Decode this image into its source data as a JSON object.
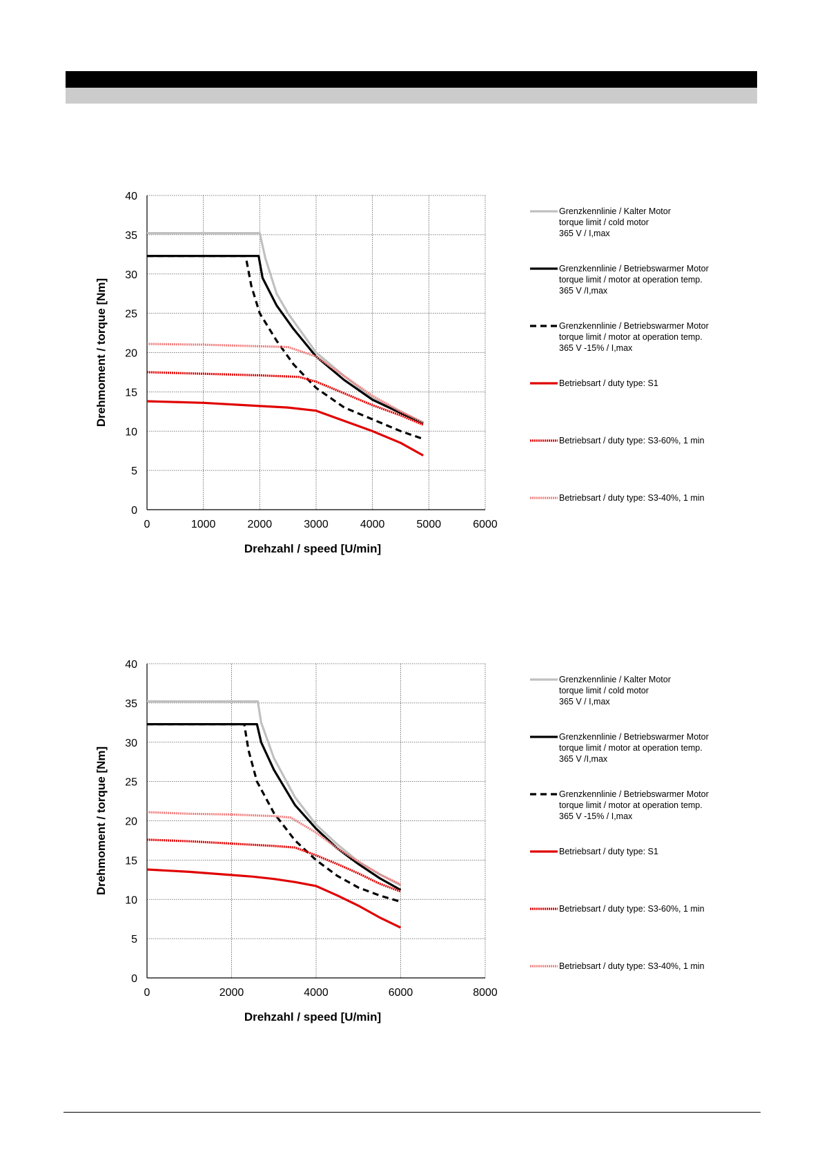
{
  "chart_data": [
    {
      "type": "line",
      "title": "",
      "xlabel": "Drehzahl / speed [U/min]",
      "ylabel": "Drehmoment / torque [Nm]",
      "xlim": [
        0,
        6000
      ],
      "ylim": [
        0,
        40
      ],
      "xticks": [
        0,
        1000,
        2000,
        3000,
        4000,
        5000,
        6000
      ],
      "yticks": [
        0,
        5,
        10,
        15,
        20,
        25,
        30,
        35,
        40
      ],
      "grid": "dotted",
      "legend_position": "right",
      "series": [
        {
          "legend": [
            "Grenzkennlinie / Kalter Motor",
            "torque limit / cold  motor",
            "365 V / I,max"
          ],
          "color": "#c0c0c0",
          "style": "solid",
          "points": [
            [
              0,
              35.2
            ],
            [
              2000,
              35.2
            ],
            [
              2100,
              32
            ],
            [
              2300,
              27.5
            ],
            [
              2500,
              25
            ],
            [
              3000,
              20
            ],
            [
              3500,
              17
            ],
            [
              4000,
              14.2
            ],
            [
              4500,
              12.5
            ],
            [
              4900,
              11
            ]
          ]
        },
        {
          "legend": [
            "Grenzkennlinie / Betriebswarmer Motor",
            "torque limit / motor at operation temp.",
            "365 V /I,max"
          ],
          "color": "#000000",
          "style": "solid",
          "points": [
            [
              0,
              32.3
            ],
            [
              1980,
              32.3
            ],
            [
              2050,
              29.5
            ],
            [
              2300,
              26
            ],
            [
              2600,
              23
            ],
            [
              3000,
              19.5
            ],
            [
              3500,
              16.5
            ],
            [
              4000,
              14
            ],
            [
              4500,
              12.3
            ],
            [
              4900,
              11
            ]
          ]
        },
        {
          "legend": [
            "Grenzkennlinie / Betriebswarmer Motor",
            "torque limit / motor at operation temp.",
            "365 V  -15% / I,max"
          ],
          "color": "#000000",
          "style": "dashed",
          "points": [
            [
              0,
              32.3
            ],
            [
              1750,
              32.3
            ],
            [
              1850,
              28.5
            ],
            [
              2000,
              25
            ],
            [
              2300,
              21.5
            ],
            [
              2600,
              18.5
            ],
            [
              3000,
              15.5
            ],
            [
              3500,
              13
            ],
            [
              4000,
              11.5
            ],
            [
              4500,
              10
            ],
            [
              4900,
              9
            ]
          ]
        },
        {
          "legend": [
            "Betriebsart / duty type: S1"
          ],
          "color": "#e00000",
          "style": "solid",
          "points": [
            [
              0,
              13.8
            ],
            [
              1000,
              13.6
            ],
            [
              2000,
              13.2
            ],
            [
              2500,
              13
            ],
            [
              3000,
              12.6
            ],
            [
              3500,
              11.3
            ],
            [
              4000,
              10
            ],
            [
              4500,
              8.5
            ],
            [
              4900,
              6.9
            ]
          ]
        },
        {
          "legend": [
            "Betriebsart / duty type: S3-60%, 1 min"
          ],
          "color": "#e00000",
          "style": "textured",
          "points": [
            [
              0,
              17.5
            ],
            [
              1000,
              17.3
            ],
            [
              2000,
              17.1
            ],
            [
              2700,
              16.9
            ],
            [
              3000,
              16.3
            ],
            [
              3500,
              14.8
            ],
            [
              4000,
              13.3
            ],
            [
              4500,
              12
            ],
            [
              4900,
              10.8
            ]
          ]
        },
        {
          "legend": [
            "Betriebsart / duty type: S3-40%, 1 min"
          ],
          "color": "#f08080",
          "style": "textured",
          "points": [
            [
              0,
              21.1
            ],
            [
              1000,
              21
            ],
            [
              2000,
              20.8
            ],
            [
              2500,
              20.7
            ],
            [
              3000,
              19.5
            ],
            [
              3500,
              17
            ],
            [
              4000,
              14.5
            ],
            [
              4500,
              12.5
            ],
            [
              4900,
              11.1
            ]
          ]
        }
      ]
    },
    {
      "type": "line",
      "title": "",
      "xlabel": "Drehzahl / speed [U/min]",
      "ylabel": "Drehmoment / torque [Nm]",
      "xlim": [
        0,
        8000
      ],
      "ylim": [
        0,
        40
      ],
      "xticks": [
        0,
        2000,
        4000,
        6000,
        8000
      ],
      "yticks": [
        0,
        5,
        10,
        15,
        20,
        25,
        30,
        35,
        40
      ],
      "grid": "dotted",
      "legend_position": "right",
      "series": [
        {
          "legend": [
            "Grenzkennlinie / Kalter Motor",
            "torque limit / cold  motor",
            "365 V / I,max"
          ],
          "color": "#c0c0c0",
          "style": "solid",
          "points": [
            [
              0,
              35.2
            ],
            [
              2620,
              35.2
            ],
            [
              2700,
              32.5
            ],
            [
              3000,
              28
            ],
            [
              3500,
              23
            ],
            [
              4000,
              19.5
            ],
            [
              4500,
              17
            ],
            [
              5000,
              14.8
            ],
            [
              5500,
              13.2
            ],
            [
              6000,
              11.8
            ]
          ]
        },
        {
          "legend": [
            "Grenzkennlinie / Betriebswarmer Motor",
            "torque limit / motor at operation temp.",
            "365 V /I,max"
          ],
          "color": "#000000",
          "style": "solid",
          "points": [
            [
              0,
              32.3
            ],
            [
              2600,
              32.3
            ],
            [
              2700,
              30
            ],
            [
              3000,
              26.5
            ],
            [
              3500,
              22
            ],
            [
              4000,
              19
            ],
            [
              4500,
              16.5
            ],
            [
              5000,
              14.5
            ],
            [
              5500,
              12.7
            ],
            [
              6000,
              11.2
            ]
          ]
        },
        {
          "legend": [
            "Grenzkennlinie / Betriebswarmer Motor",
            "torque limit / motor at operation temp.",
            "365 V  -15% / I,max"
          ],
          "color": "#000000",
          "style": "dashed",
          "points": [
            [
              0,
              32.3
            ],
            [
              2300,
              32.3
            ],
            [
              2400,
              29
            ],
            [
              2600,
              25
            ],
            [
              3000,
              21
            ],
            [
              3500,
              17.5
            ],
            [
              4000,
              15
            ],
            [
              4500,
              13
            ],
            [
              5000,
              11.5
            ],
            [
              5500,
              10.5
            ],
            [
              6000,
              9.7
            ]
          ]
        },
        {
          "legend": [
            "Betriebsart / duty type: S1"
          ],
          "color": "#e00000",
          "style": "solid",
          "points": [
            [
              0,
              13.8
            ],
            [
              1000,
              13.5
            ],
            [
              2000,
              13.1
            ],
            [
              2500,
              12.9
            ],
            [
              3000,
              12.6
            ],
            [
              3500,
              12.2
            ],
            [
              4000,
              11.7
            ],
            [
              4500,
              10.5
            ],
            [
              5000,
              9.2
            ],
            [
              5500,
              7.7
            ],
            [
              6000,
              6.4
            ]
          ]
        },
        {
          "legend": [
            "Betriebsart / duty type: S3-60%, 1 min"
          ],
          "color": "#e00000",
          "style": "textured",
          "points": [
            [
              0,
              17.6
            ],
            [
              1000,
              17.4
            ],
            [
              2000,
              17.1
            ],
            [
              3000,
              16.8
            ],
            [
              3500,
              16.6
            ],
            [
              4000,
              15.6
            ],
            [
              4500,
              14.5
            ],
            [
              5000,
              13.3
            ],
            [
              5500,
              12
            ],
            [
              6000,
              11
            ]
          ]
        },
        {
          "legend": [
            "Betriebsart / duty type: S3-40%, 1 min"
          ],
          "color": "#f08080",
          "style": "textured",
          "points": [
            [
              0,
              21.1
            ],
            [
              1000,
              20.9
            ],
            [
              2000,
              20.8
            ],
            [
              3000,
              20.6
            ],
            [
              3400,
              20.4
            ],
            [
              4000,
              18.5
            ],
            [
              4500,
              16.5
            ],
            [
              5000,
              14.8
            ],
            [
              5500,
              13.2
            ],
            [
              6000,
              11.9
            ]
          ]
        }
      ]
    }
  ]
}
